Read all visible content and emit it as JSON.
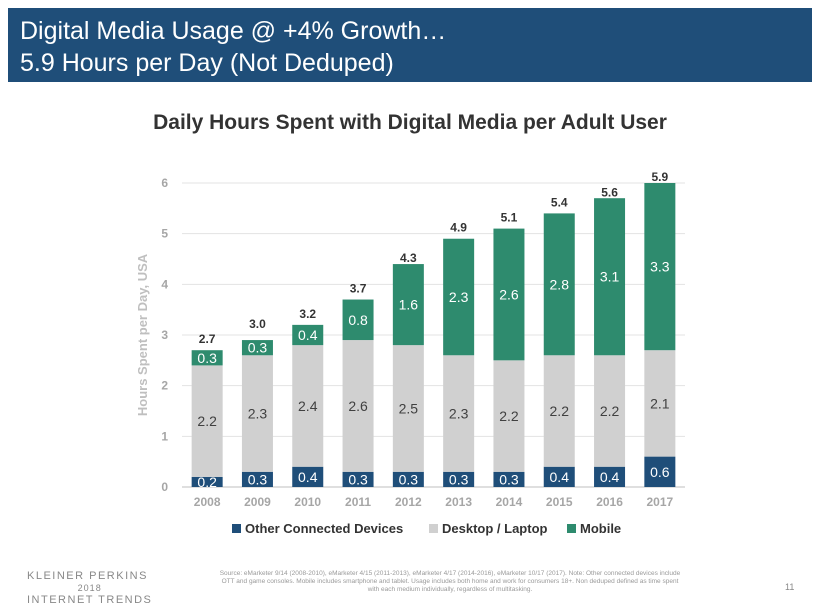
{
  "header": {
    "line1": "Digital Media Usage @ +4% Growth…",
    "line2": "5.9 Hours per Day (Not Deduped)"
  },
  "chart_data": {
    "type": "bar",
    "stacked": true,
    "title": "Daily Hours Spent with Digital Media per Adult User",
    "xlabel": "",
    "ylabel": "Hours Spent per Day, USA",
    "ylim": [
      0,
      6
    ],
    "yticks": [
      "0",
      "1",
      "2",
      "3",
      "4",
      "5",
      "6"
    ],
    "grid": true,
    "legend_position": "bottom",
    "categories": [
      "2008",
      "2009",
      "2010",
      "2011",
      "2012",
      "2013",
      "2014",
      "2015",
      "2016",
      "2017"
    ],
    "series": [
      {
        "name": "Other Connected Devices",
        "color": "#1f4e79",
        "values": [
          0.2,
          0.3,
          0.4,
          0.3,
          0.3,
          0.3,
          0.3,
          0.4,
          0.4,
          0.6
        ],
        "labels": [
          "0.2",
          "0.3",
          "0.4",
          "0.3",
          "0.3",
          "0.3",
          "0.3",
          "0.4",
          "0.4",
          "0.6"
        ]
      },
      {
        "name": "Desktop / Laptop",
        "color": "#d0d0d0",
        "values": [
          2.2,
          2.3,
          2.4,
          2.6,
          2.5,
          2.3,
          2.2,
          2.2,
          2.2,
          2.1
        ],
        "labels": [
          "2.2",
          "2.3",
          "2.4",
          "2.6",
          "2.5",
          "2.3",
          "2.2",
          "2.2",
          "2.2",
          "2.1"
        ]
      },
      {
        "name": "Mobile",
        "color": "#2e8b6e",
        "values": [
          0.3,
          0.3,
          0.4,
          0.8,
          1.6,
          2.3,
          2.6,
          2.8,
          3.1,
          3.3
        ],
        "labels": [
          "0.3",
          "0.3",
          "0.4",
          "0.8",
          "1.6",
          "2.3",
          "2.6",
          "2.8",
          "3.1",
          "3.3"
        ]
      }
    ],
    "totals": [
      2.7,
      3.0,
      3.2,
      3.7,
      4.3,
      4.9,
      5.1,
      5.4,
      5.6,
      5.9
    ],
    "total_labels": [
      "2.7",
      "3.0",
      "3.2",
      "3.7",
      "4.3",
      "4.9",
      "5.1",
      "5.4",
      "5.6",
      "5.9"
    ]
  },
  "footer": {
    "logo_line1": "KLEINER PERKINS",
    "logo_line2": "2018",
    "logo_line3": "INTERNET TRENDS",
    "source": "Source: eMarketer 9/14 (2008-2010), eMarketer 4/15 (2011-2013), eMarketer 4/17 (2014-2016), eMarketer 10/17 (2017). Note: Other connected devices include OTT and game consoles. Mobile includes smartphone and tablet. Usage includes both home and work for consumers 18+. Non deduped defined as time spent with each medium individually, regardless of multitasking.",
    "page_number": "11"
  }
}
